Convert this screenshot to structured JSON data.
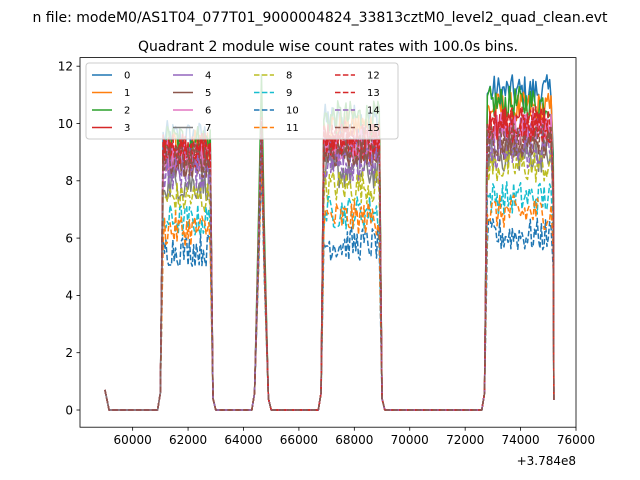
{
  "chart_data": {
    "type": "line",
    "suptitle": "n file: modeM0/AS1T04_077T01_9000004824_33813cztM0_level2_quad_clean.evt",
    "title": "Quadrant 2 module wise count rates with 100.0s bins.",
    "xlabel": "",
    "ylabel": "",
    "offset_label": "+3.784e8",
    "xlim": [
      58100,
      76000
    ],
    "ylim": [
      -0.6,
      12.3
    ],
    "xticks": [
      60000,
      62000,
      64000,
      66000,
      68000,
      70000,
      72000,
      74000,
      76000
    ],
    "yticks": [
      0,
      2,
      4,
      6,
      8,
      10,
      12
    ],
    "grid": false,
    "legend_position": "top-left",
    "legend_columns": 4,
    "segments": [
      {
        "start": 59000,
        "end": 59150,
        "edge": "start"
      },
      {
        "start": 61000,
        "end": 62900,
        "edge": "both"
      },
      {
        "start": 64400,
        "end": 64900,
        "edge": "both"
      },
      {
        "start": 66800,
        "end": 69000,
        "edge": "both"
      },
      {
        "start": 72700,
        "end": 75200,
        "edge": "both"
      }
    ],
    "series": [
      {
        "name": "0",
        "color": "#1f77b4",
        "dashed": false,
        "level_a": 9.5,
        "level_b": 10.1,
        "level_c": 10.8,
        "level_d": 11.1,
        "spike_peak": 10.6
      },
      {
        "name": "1",
        "color": "#ff7f0e",
        "dashed": false,
        "level_a": 9.2,
        "level_b": 9.9,
        "level_c": 10.3,
        "level_d": 10.5,
        "spike_peak": 10.4
      },
      {
        "name": "2",
        "color": "#2ca02c",
        "dashed": false,
        "level_a": 9.4,
        "level_b": 10.2,
        "level_c": 10.5,
        "level_d": 10.7,
        "spike_peak": 11.7
      },
      {
        "name": "3",
        "color": "#d62728",
        "dashed": false,
        "level_a": 9.0,
        "level_b": 9.4,
        "level_c": 9.8,
        "level_d": 10.0,
        "spike_peak": 10.2
      },
      {
        "name": "4",
        "color": "#9467bd",
        "dashed": false,
        "level_a": 8.7,
        "level_b": 9.0,
        "level_c": 9.3,
        "level_d": 9.6,
        "spike_peak": 10.0
      },
      {
        "name": "5",
        "color": "#8c564b",
        "dashed": false,
        "level_a": 8.6,
        "level_b": 8.9,
        "level_c": 9.1,
        "level_d": 9.3,
        "spike_peak": 9.8
      },
      {
        "name": "6",
        "color": "#e377c2",
        "dashed": false,
        "level_a": 8.9,
        "level_b": 9.3,
        "level_c": 9.6,
        "level_d": 9.8,
        "spike_peak": 10.1
      },
      {
        "name": "7",
        "color": "#7f7f7f",
        "dashed": false,
        "level_a": 7.9,
        "level_b": 8.3,
        "level_c": 8.6,
        "level_d": 8.9,
        "spike_peak": 9.5
      },
      {
        "name": "8",
        "color": "#bcbd22",
        "dashed": true,
        "level_a": 7.4,
        "level_b": 7.8,
        "level_c": 8.3,
        "level_d": 8.5,
        "spike_peak": 9.3
      },
      {
        "name": "9",
        "color": "#17becf",
        "dashed": true,
        "level_a": 6.6,
        "level_b": 6.9,
        "level_c": 7.2,
        "level_d": 7.4,
        "spike_peak": 9.0
      },
      {
        "name": "10",
        "color": "#1f77b4",
        "dashed": true,
        "level_a": 5.6,
        "level_b": 5.8,
        "level_c": 5.9,
        "level_d": 6.1,
        "spike_peak": 8.5
      },
      {
        "name": "11",
        "color": "#ff7f0e",
        "dashed": true,
        "level_a": 6.3,
        "level_b": 6.7,
        "level_c": 6.8,
        "level_d": 6.9,
        "spike_peak": 8.8
      },
      {
        "name": "12",
        "color": "#d62728",
        "dashed": true,
        "level_a": 9.1,
        "level_b": 9.5,
        "level_c": 9.9,
        "level_d": 10.0,
        "spike_peak": 10.1
      },
      {
        "name": "13",
        "color": "#d62728",
        "dashed": true,
        "level_a": 9.0,
        "level_b": 9.3,
        "level_c": 9.6,
        "level_d": 9.8,
        "spike_peak": 10.0
      },
      {
        "name": "14",
        "color": "#9467bd",
        "dashed": true,
        "level_a": 8.3,
        "level_b": 8.6,
        "level_c": 8.9,
        "level_d": 9.0,
        "spike_peak": 9.7
      },
      {
        "name": "15",
        "color": "#8c564b",
        "dashed": true,
        "level_a": 8.7,
        "level_b": 9.0,
        "level_c": 9.2,
        "level_d": 9.4,
        "spike_peak": 9.9
      }
    ],
    "start_value": 0.7,
    "baseline_value": 0.0
  }
}
